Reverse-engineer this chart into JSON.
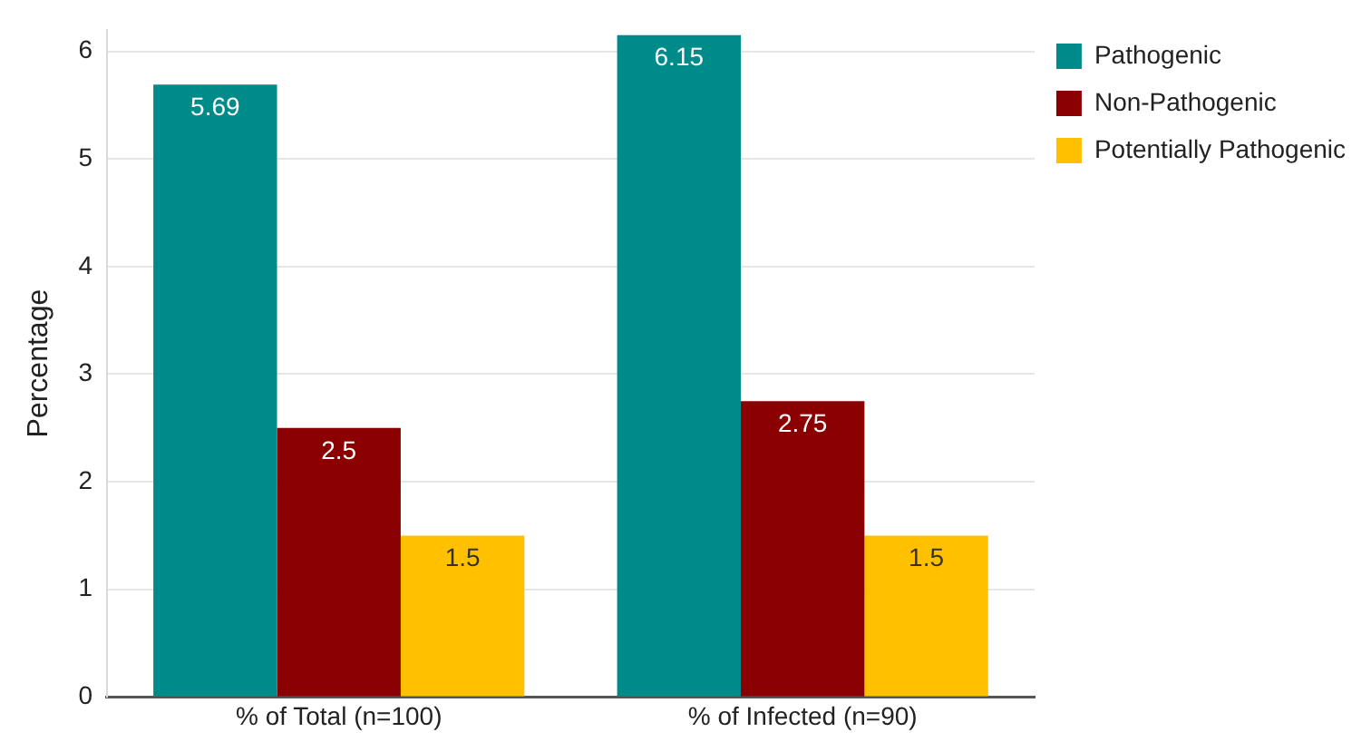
{
  "chart_data": {
    "type": "bar",
    "ylabel": "Percentage",
    "categories": [
      "% of Total (n=100)",
      "% of Infected (n=90)"
    ],
    "series": [
      {
        "name": "Pathogenic",
        "color": "#008b8b",
        "values": [
          5.69,
          6.15
        ]
      },
      {
        "name": "Non-Pathogenic",
        "color": "#8b0000",
        "values": [
          2.5,
          2.75
        ]
      },
      {
        "name": "Potentially Pathogenic",
        "color": "#ffc000",
        "values": [
          1.5,
          1.5
        ]
      }
    ],
    "ylim": [
      0,
      6.2
    ],
    "yticks": [
      0,
      1,
      2,
      3,
      4,
      5,
      6
    ],
    "grid": "y",
    "legend": "top right",
    "data_labels": true
  }
}
